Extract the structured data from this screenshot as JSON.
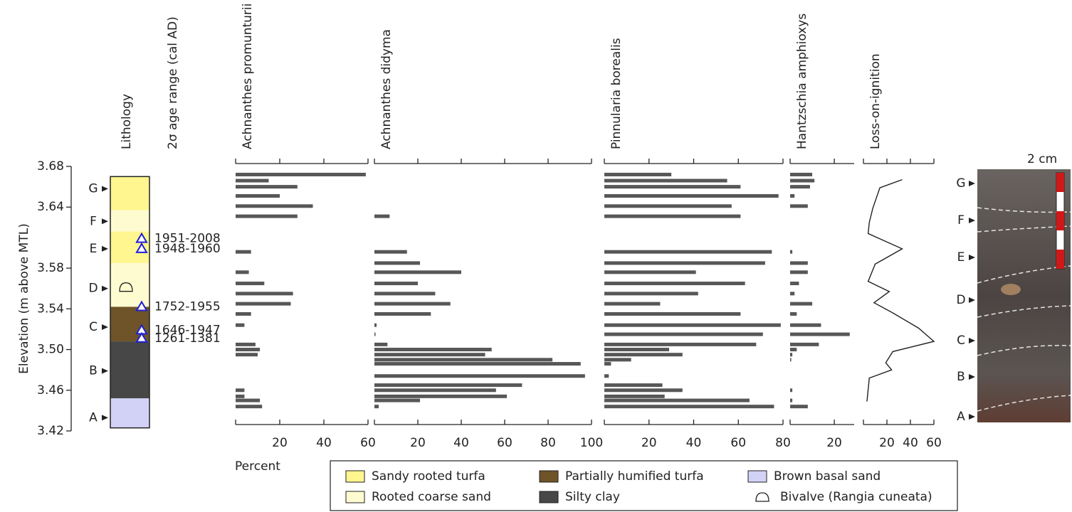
{
  "chart_data": {
    "type": "stratigraphic",
    "ylabel": "Elevation (m above MTL)",
    "ylim": [
      3.42,
      3.68
    ],
    "yticks": [
      3.68,
      3.64,
      3.58,
      3.54,
      {
        "value": 3.5,
        "label": "3.50"
      },
      3.46,
      3.42
    ],
    "units": [
      {
        "label": "G",
        "elevation": 3.658
      },
      {
        "label": "F",
        "elevation": 3.626
      },
      {
        "label": "E",
        "elevation": 3.599
      },
      {
        "label": "D",
        "elevation": 3.56
      },
      {
        "label": "C",
        "elevation": 3.522
      },
      {
        "label": "B",
        "elevation": 3.479
      },
      {
        "label": "A",
        "elevation": 3.433
      }
    ],
    "lithology": {
      "title": "Lithology",
      "layers": [
        {
          "from": 3.67,
          "to": 3.637,
          "facies": 0
        },
        {
          "from": 3.637,
          "to": 3.616,
          "facies": 1
        },
        {
          "from": 3.616,
          "to": 3.585,
          "facies": 0
        },
        {
          "from": 3.585,
          "to": 3.542,
          "facies": 1
        },
        {
          "from": 3.542,
          "to": 3.508,
          "facies": 2
        },
        {
          "from": 3.508,
          "to": 3.452,
          "facies": 3
        },
        {
          "from": 3.452,
          "to": 3.423,
          "facies": 4
        }
      ]
    },
    "ages": {
      "title": "2σ age range (cal AD)",
      "samples": [
        {
          "elevation": 3.609,
          "label": "1951-2008"
        },
        {
          "elevation": 3.599,
          "label": "1948-1960"
        },
        {
          "elevation": 3.542,
          "label": "1752-1955"
        },
        {
          "elevation": 3.519,
          "label": "1646-1947"
        },
        {
          "elevation": 3.511,
          "label": "1261-1381"
        }
      ]
    },
    "bivalve": {
      "elevation": 3.56
    },
    "x": [
      3.672,
      3.666,
      3.66,
      3.651,
      3.641,
      3.631,
      3.596,
      3.585,
      3.576,
      3.565,
      3.555,
      3.545,
      3.535,
      3.524,
      3.515,
      3.505,
      3.5,
      3.495,
      3.49,
      3.486,
      3.474,
      3.465,
      3.46,
      3.454,
      3.45,
      3.444
    ],
    "series": [
      {
        "name": "Achnanthes promunturii",
        "color": "#575757",
        "xlim": [
          0,
          60
        ],
        "xticks": [
          20,
          40,
          60
        ],
        "values": [
          59,
          15,
          28,
          20,
          35,
          28,
          7,
          null,
          6,
          13,
          26,
          25,
          7,
          4,
          null,
          9,
          11,
          10,
          null,
          null,
          null,
          null,
          4,
          4,
          11,
          12
        ]
      },
      {
        "name": "Achnanthes didyma",
        "color": "#575757",
        "xlim": [
          0,
          100
        ],
        "xticks": [
          20,
          40,
          60,
          80,
          100
        ],
        "values": [
          null,
          null,
          null,
          null,
          null,
          7,
          15,
          21,
          40,
          20,
          28,
          35,
          26,
          1,
          0.5,
          6,
          54,
          51,
          82,
          95,
          97,
          68,
          56,
          61,
          21,
          2
        ]
      },
      {
        "name": "Pinnularia borealis",
        "color": "#575757",
        "xlim": [
          0,
          80
        ],
        "xticks": [
          20,
          40,
          60,
          80
        ],
        "values": [
          30,
          55,
          61,
          78,
          57,
          61,
          75,
          72,
          41,
          63,
          42,
          25,
          61,
          79,
          71,
          68,
          29,
          35,
          12,
          3,
          2,
          26,
          35,
          27,
          65,
          76
        ]
      },
      {
        "name": "Hantzschia amphioxys",
        "color": "#575757",
        "xlim": [
          0,
          29
        ],
        "xticks": [
          20
        ],
        "values": [
          10,
          11,
          9,
          2,
          8,
          null,
          1,
          8,
          8,
          4,
          2,
          10,
          3,
          14,
          27,
          13,
          3,
          1,
          0.5,
          null,
          null,
          null,
          1,
          null,
          1,
          8
        ]
      }
    ],
    "loi": {
      "name": "Loss-on-ignition",
      "color": "#222222",
      "xlim": [
        0,
        60
      ],
      "xticks": [
        20,
        40,
        60
      ],
      "x": [
        3.667,
        3.659,
        3.639,
        3.625,
        3.614,
        3.599,
        3.584,
        3.567,
        3.557,
        3.546,
        3.536,
        3.521,
        3.508,
        3.498,
        3.487,
        3.48,
        3.472,
        3.449
      ],
      "values": [
        33,
        14,
        8,
        5,
        4,
        33,
        10,
        4,
        22,
        9,
        25,
        47,
        60,
        25,
        19,
        24,
        5,
        3
      ]
    },
    "xlabel": "Percent",
    "legend": [
      {
        "name": "Sandy rooted turfa",
        "color": "#fff68f"
      },
      {
        "name": "Rooted coarse sand",
        "color": "#fffbd0"
      },
      {
        "name": "Partially humified turfa",
        "color": "#6e5428"
      },
      {
        "name": "Silty clay",
        "color": "#474747"
      },
      {
        "name": "Brown basal sand",
        "color": "#d2d2f7"
      },
      {
        "name": "Bivalve (Rangia cuneata)",
        "symbol": "bivalve"
      }
    ],
    "photo": {
      "scale_label": "2 cm"
    }
  }
}
